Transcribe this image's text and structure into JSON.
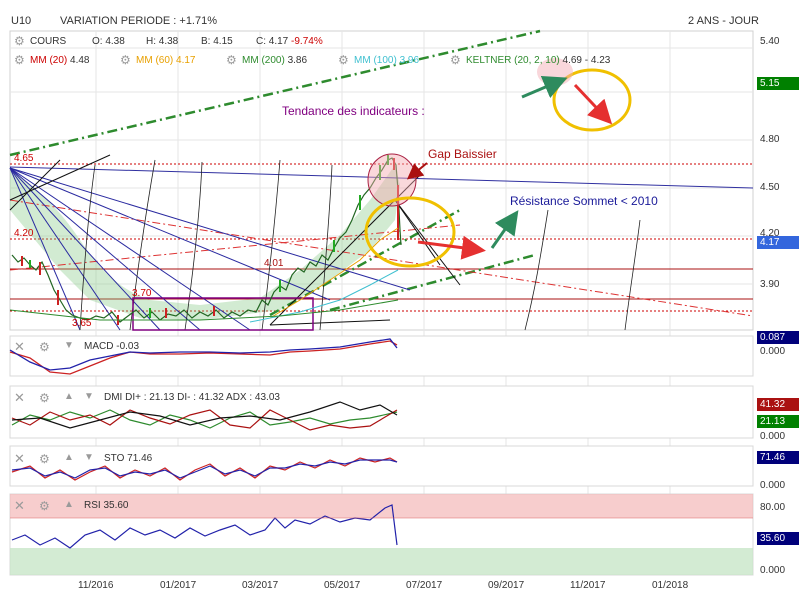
{
  "header": {
    "symbol": "U10",
    "variation": "VARIATION PERIODE : +1.71%",
    "period": "2 ANS - JOUR"
  },
  "legend": {
    "cours_label": "COURS",
    "open": "O: 4.38",
    "high": "H: 4.38",
    "low": "B: 4.15",
    "close_prefix": "C: 4.17",
    "close_change": "-9.74%",
    "mm20_label": "MM (20)",
    "mm20_value": "4.48",
    "mm60_label": "MM (60)",
    "mm60_value": "4.17",
    "mm200_label": "MM (200)",
    "mm200_value": "3.86",
    "mm100_label": "MM (100)",
    "mm100_value": "3.96",
    "keltner_label": "KELTNER (20, 2, 10)",
    "keltner_value": "4.69 - 4.23"
  },
  "annotations": {
    "tendance": "Tendance des indicateurs :",
    "gap": "Gap Baissier",
    "resistance": "Résistance Sommet < 2010",
    "lvl_465": "4.65",
    "lvl_420": "4.20",
    "lvl_401": "4.01",
    "lvl_370": "3.70",
    "lvl_365": "3.65"
  },
  "price_axis": {
    "ticks": [
      "5.40",
      "5.15",
      "4.80",
      "4.50",
      "4.20",
      "3.90"
    ],
    "badge_high": "5.15",
    "badge_last": "4.17"
  },
  "x_axis": {
    "ticks": [
      "11/2016",
      "01/2017",
      "03/2017",
      "05/2017",
      "07/2017",
      "09/2017",
      "11/2017",
      "01/2018"
    ]
  },
  "macd": {
    "label": "MACD",
    "value": "-0.03",
    "badge": "0.087",
    "zero": "0.000"
  },
  "dmi": {
    "label": "DMI",
    "text": "DI+ : 21.13 DI- : 41.32 ADX : 43.03",
    "badge_minus": "41.32",
    "badge_plus": "21.13",
    "zero": "0.000"
  },
  "sto": {
    "label": "STO",
    "value": "71.46",
    "badge": "71.46",
    "zero": "0.000"
  },
  "rsi": {
    "label": "RSI",
    "value": "35.60",
    "badge": "35.60",
    "level_80": "80.00",
    "zero": "0.000"
  },
  "colors": {
    "accent_green": "#008000",
    "bear_red": "#cc0000",
    "mm20": "#cc0000",
    "mm60": "#e8a000",
    "mm200": "#2e8b2e",
    "mm100": "#40c0d0",
    "keltner": "#2e8b2e",
    "navy": "#00007a"
  },
  "chart_data": {
    "type": "candlestick",
    "title": "U10",
    "x_range": [
      "2016-09",
      "2018-02"
    ],
    "y_range": [
      3.7,
      5.45
    ],
    "last": {
      "open": 4.38,
      "high": 4.38,
      "low": 4.15,
      "close": 4.17,
      "change_pct": -9.74
    },
    "close_series": [
      {
        "date": "2016-09",
        "close": 4.2
      },
      {
        "date": "2016-10",
        "close": 4.0
      },
      {
        "date": "2016-11",
        "close": 3.8
      },
      {
        "date": "2016-12",
        "close": 3.75
      },
      {
        "date": "2017-01",
        "close": 3.75
      },
      {
        "date": "2017-02",
        "close": 3.75
      },
      {
        "date": "2017-03",
        "close": 3.8
      },
      {
        "date": "2017-04",
        "close": 4.0
      },
      {
        "date": "2017-05",
        "close": 4.2
      },
      {
        "date": "2017-06-01",
        "close": 4.5
      },
      {
        "date": "2017-06-10",
        "close": 4.65
      },
      {
        "date": "2017-06-15",
        "close": 4.17
      }
    ],
    "indicators": {
      "mm20": 4.48,
      "mm60": 4.17,
      "mm100": 3.96,
      "mm200": 3.86,
      "keltner_upper": 4.69,
      "keltner_lower": 4.23,
      "macd": -0.03,
      "di_plus": 21.13,
      "di_minus": 41.32,
      "adx": 43.03,
      "sto": 71.46,
      "rsi": 35.6
    },
    "horizontal_levels": [
      4.65,
      4.2,
      4.01,
      3.7,
      3.65
    ]
  }
}
